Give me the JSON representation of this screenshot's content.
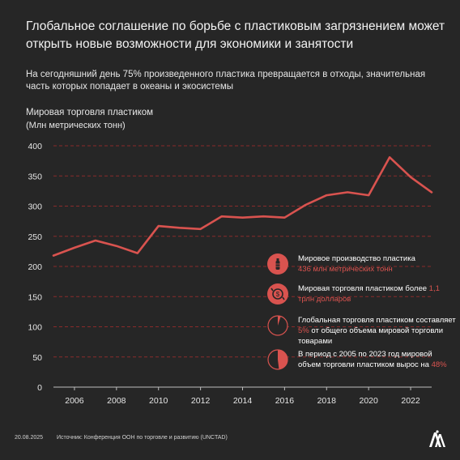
{
  "header": {
    "title": "Глобальное соглашение по борьбе с пластиковым загрязнением может открыть новые возможности для экономики и занятости",
    "subtitle": "На сегодняшний день 75% произведенного пластика превращается в отходы, значительная часть которых попадает в океаны и экосистемы"
  },
  "chart_data": {
    "type": "line",
    "title": "Мировая торговля пластиком",
    "ylabel": "(Млн метрических тонн)",
    "xlabel": "",
    "x": [
      2005,
      2006,
      2007,
      2008,
      2009,
      2010,
      2011,
      2012,
      2013,
      2014,
      2015,
      2016,
      2017,
      2018,
      2019,
      2020,
      2021,
      2022,
      2023
    ],
    "values": [
      218,
      231,
      243,
      234,
      222,
      267,
      264,
      262,
      283,
      281,
      283,
      281,
      302,
      318,
      323,
      318,
      381,
      348,
      323
    ],
    "xlim": [
      2005,
      2023
    ],
    "ylim": [
      0,
      400
    ],
    "yticks": [
      "0",
      "50",
      "100",
      "150",
      "200",
      "250",
      "300",
      "350",
      "400"
    ],
    "xticks": [
      "2006",
      "2008",
      "2010",
      "2012",
      "2014",
      "2016",
      "2018",
      "2020",
      "2022"
    ],
    "grid": "horizontal dashed",
    "line_color": "#d9534f"
  },
  "info": [
    {
      "icon": "bottle-icon",
      "text": "Мировое производство пластика",
      "highlight": "436 млн метрических тонн",
      "after": ""
    },
    {
      "icon": "trade-icon",
      "text": "Мировая торговля пластиком более ",
      "highlight": "1,1 трлн долларов",
      "after": ""
    },
    {
      "icon": "pie-small-icon",
      "text": "Глобальная торговля пластиком составляет ",
      "highlight": "5%",
      "after": " от общего объема мировой торговли товарами"
    },
    {
      "icon": "pie-half-icon",
      "text": "В период с 2005 по 2023 год мировой объем торговли пластиком вырос на ",
      "highlight": "48%",
      "after": ""
    }
  ],
  "footer": {
    "date": "20.08.2025",
    "source": "Источник: Конференция ООН по торговле и развитию (UNCTAD)",
    "logo": "AA"
  },
  "colors": {
    "background": "#262626",
    "accent": "#d9534f",
    "grid": "#8a2b2b",
    "text": "#ffffff"
  }
}
